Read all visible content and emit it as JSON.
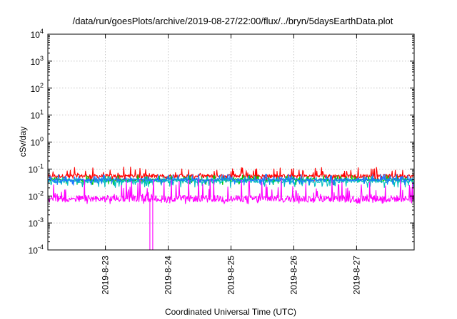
{
  "chart_data": {
    "type": "line",
    "title": "/data/run/goesPlots/archive/2019-08-27/22:00/flux/../bryn/5daysEarthData.plot",
    "xlabel": "Coordinated Universal Time (UTC)",
    "ylabel": "cSv/day",
    "y_scale": "log",
    "ylim": [
      0.0001,
      10000
    ],
    "y_ticks": [
      {
        "base": "10",
        "exp": "-4"
      },
      {
        "base": "10",
        "exp": "-3"
      },
      {
        "base": "10",
        "exp": "-2"
      },
      {
        "base": "10",
        "exp": "-1"
      },
      {
        "base": "10",
        "exp": "0"
      },
      {
        "base": "10",
        "exp": "1"
      },
      {
        "base": "10",
        "exp": "2"
      },
      {
        "base": "10",
        "exp": "3"
      },
      {
        "base": "10",
        "exp": "4"
      }
    ],
    "xlim": [
      "2019-08-22T02:00",
      "2019-08-27T22:00"
    ],
    "x_ticks": [
      "2019-8-23",
      "2019-8-24",
      "2019-8-25",
      "2019-8-26",
      "2019-8-27"
    ],
    "grid": true,
    "series": [
      {
        "color": "#ff0000",
        "values": {
          "base": 0.055,
          "low": 0.035,
          "high": 0.12
        }
      },
      {
        "color": "#00cc00",
        "values": {
          "base": 0.04,
          "low": 0.025,
          "high": 0.06
        }
      },
      {
        "color": "#00bfbf",
        "values": {
          "base": 0.035,
          "low": 0.02,
          "high": 0.055
        }
      },
      {
        "color": "#1e78ff",
        "values": {
          "base": 0.04,
          "low": 0.025,
          "high": 0.065
        }
      },
      {
        "color": "#ff00ff",
        "values": {
          "base": 0.008,
          "low": 0.005,
          "high": 0.045
        }
      }
    ],
    "annotations": [
      {
        "series": 4,
        "date": "2019-08-23T17:00",
        "value": 0.0001,
        "note": "dropout to lower axis"
      }
    ]
  }
}
